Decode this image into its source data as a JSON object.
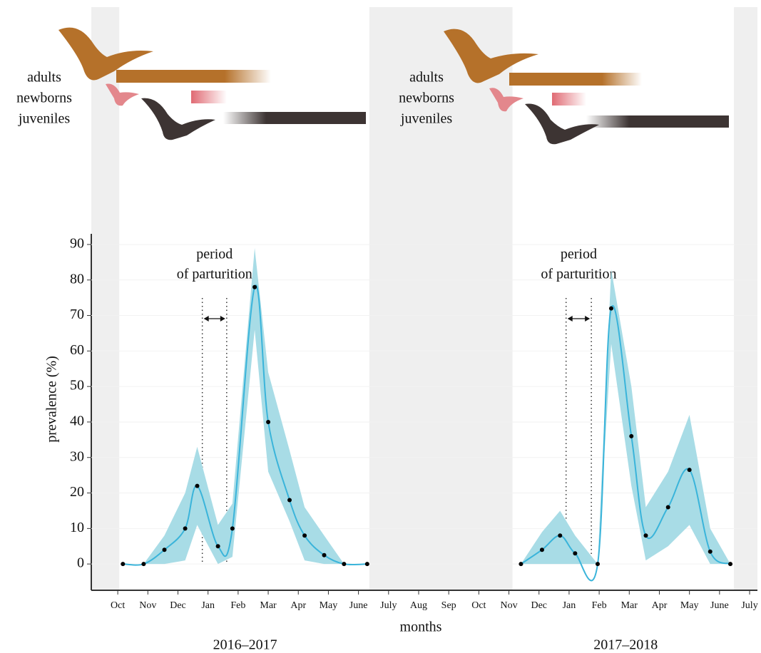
{
  "chart_data": {
    "type": "line",
    "y_label": "prevalence (%)",
    "x_label": "months",
    "labels_top": [
      {
        "adults": "adults",
        "newborns": "newborns",
        "juveniles": "juveniles"
      },
      {
        "adults": "adults",
        "newborns": "newborns",
        "juveniles": "juveniles"
      }
    ],
    "annotations": [
      {
        "line1": "period",
        "line2": "of parturition",
        "x": [
          2.81,
          3.62
        ]
      },
      {
        "line1": "period",
        "line2": "of parturition",
        "x": [
          14.9,
          15.74
        ]
      }
    ],
    "xlim": [
      -0.88,
      21.26
    ],
    "ylim": [
      -7.4,
      93
    ],
    "xticks": [
      {
        "value": 0,
        "label": "Oct"
      },
      {
        "value": 1,
        "label": "Nov"
      },
      {
        "value": 2,
        "label": "Dec"
      },
      {
        "value": 3,
        "label": "Jan"
      },
      {
        "value": 4,
        "label": "Feb"
      },
      {
        "value": 5,
        "label": "Mar"
      },
      {
        "value": 6,
        "label": "Apr"
      },
      {
        "value": 7,
        "label": "May"
      },
      {
        "value": 8,
        "label": "June"
      },
      {
        "value": 9,
        "label": "July"
      },
      {
        "value": 10,
        "label": "Aug"
      },
      {
        "value": 11,
        "label": "Sep"
      },
      {
        "value": 12,
        "label": "Oct"
      },
      {
        "value": 13,
        "label": "Nov"
      },
      {
        "value": 14,
        "label": "Dec"
      },
      {
        "value": 15,
        "label": "Jan"
      },
      {
        "value": 16,
        "label": "Feb"
      },
      {
        "value": 17,
        "label": "Mar"
      },
      {
        "value": 18,
        "label": "Apr"
      },
      {
        "value": 19,
        "label": "May"
      },
      {
        "value": 20,
        "label": "June"
      },
      {
        "value": 21,
        "label": "July"
      }
    ],
    "yticks": [
      0,
      10,
      20,
      30,
      40,
      50,
      60,
      70,
      80,
      90
    ],
    "shaded_x": [
      [
        -0.88,
        0.05
      ],
      [
        8.36,
        13.12
      ],
      [
        20.48,
        21.26
      ]
    ],
    "band_color": "#a8dce6",
    "shade_color": "#efefef",
    "series": [
      {
        "name": "2016–2017",
        "color": "#3ab4da",
        "x": [
          0.17,
          0.86,
          1.55,
          2.24,
          2.64,
          3.33,
          3.81,
          4.55,
          5.0,
          5.71,
          6.21,
          6.86,
          7.52,
          8.29
        ],
        "values": [
          0,
          0,
          4,
          10,
          22,
          5,
          10,
          78,
          40,
          18,
          8,
          2.5,
          0,
          0
        ],
        "lower": [
          0,
          0,
          0,
          1,
          11,
          0,
          2,
          66,
          26,
          12,
          1,
          0,
          0,
          0
        ],
        "upper": [
          0,
          0,
          8,
          20,
          33,
          11,
          17,
          89,
          54,
          32,
          16,
          8,
          0,
          0
        ]
      },
      {
        "name": "2017–2018",
        "color": "#3ab4da",
        "x": [
          13.4,
          14.1,
          14.7,
          15.2,
          15.95,
          16.4,
          17.07,
          17.55,
          18.29,
          19.0,
          19.69,
          20.36
        ],
        "values": [
          0,
          4,
          8,
          3,
          0,
          72,
          36,
          8,
          16,
          26.5,
          3.5,
          0
        ],
        "lower": [
          0,
          0,
          0,
          0,
          0,
          62,
          22,
          1,
          5,
          11,
          0,
          0
        ],
        "upper": [
          0,
          9,
          15,
          8,
          0,
          83,
          50,
          16,
          26,
          42,
          10,
          0
        ]
      }
    ]
  }
}
